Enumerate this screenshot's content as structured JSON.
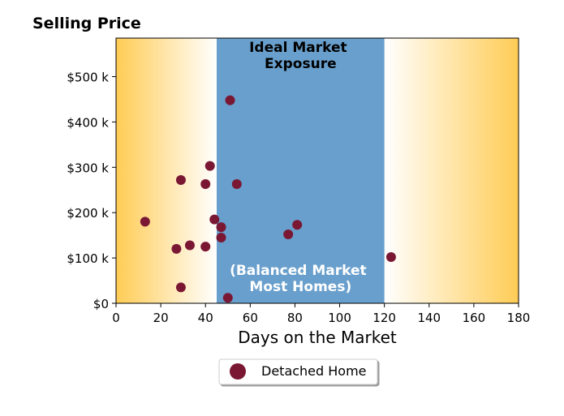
{
  "chart_data": {
    "type": "scatter",
    "title": "Selling Price",
    "xlabel": "Days on the Market",
    "ylabel": "",
    "xlim": [
      0,
      180
    ],
    "ylim": [
      0,
      585000
    ],
    "xticks": [
      0,
      20,
      40,
      60,
      80,
      100,
      120,
      140,
      160,
      180
    ],
    "xtick_labels": [
      "0",
      "20",
      "40",
      "60",
      "80",
      "100",
      "120",
      "140",
      "160",
      "180"
    ],
    "yticks": [
      0,
      100000,
      200000,
      300000,
      400000,
      500000
    ],
    "ytick_labels": [
      "$0",
      "$100 k",
      "$200 k",
      "$300 k",
      "$400 k",
      "$500 k"
    ],
    "grid": false,
    "legend_position": "bottom-center",
    "band": {
      "x_range": [
        45,
        120
      ],
      "color": "#699fcc",
      "top_label": [
        "Ideal Market",
        "Exposure"
      ],
      "bottom_label": [
        "(Balanced Market",
        "Most Homes)"
      ]
    },
    "background_gradient": {
      "edge_color": "#ffcc55",
      "center_color": "#ffffff"
    },
    "series": [
      {
        "name": "Detached Home",
        "color": "#7a1834",
        "points": [
          {
            "x": 13,
            "y": 180000
          },
          {
            "x": 27,
            "y": 120000
          },
          {
            "x": 29,
            "y": 272000
          },
          {
            "x": 29,
            "y": 35000
          },
          {
            "x": 33,
            "y": 128000
          },
          {
            "x": 40,
            "y": 263000
          },
          {
            "x": 40,
            "y": 125000
          },
          {
            "x": 42,
            "y": 303000
          },
          {
            "x": 44,
            "y": 185000
          },
          {
            "x": 47,
            "y": 168000
          },
          {
            "x": 47,
            "y": 145000
          },
          {
            "x": 50,
            "y": 12000
          },
          {
            "x": 51,
            "y": 448000
          },
          {
            "x": 54,
            "y": 263000
          },
          {
            "x": 77,
            "y": 152000
          },
          {
            "x": 81,
            "y": 173000
          },
          {
            "x": 123,
            "y": 102000
          }
        ]
      }
    ]
  }
}
